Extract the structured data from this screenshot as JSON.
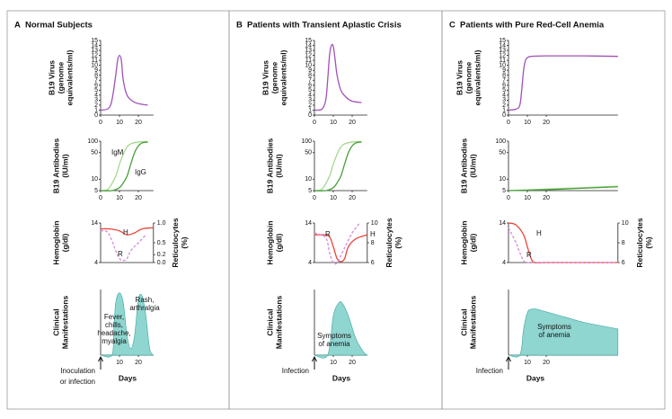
{
  "chart_data": [
    {
      "type": "line",
      "panel_label": "A",
      "title": "Normal Subjects",
      "ylabel": [
        "B19 Virus",
        "(genome",
        "equivalents/ml)"
      ],
      "xlim": [
        0,
        28
      ],
      "xticks": [
        0,
        10,
        20
      ],
      "ylim": [
        0,
        15
      ],
      "yticks": [
        0,
        1,
        2,
        3,
        4,
        5,
        6,
        7,
        8,
        9,
        10,
        11,
        12,
        13,
        14,
        15
      ],
      "series": [
        {
          "color": "#a052b8",
          "x": [
            0,
            4,
            6,
            8,
            9,
            10,
            11,
            12,
            14,
            17,
            20,
            25
          ],
          "values": [
            1,
            1.3,
            3,
            8,
            11,
            12,
            11,
            7,
            4,
            2.8,
            2.3,
            2
          ]
        }
      ]
    },
    {
      "type": "line",
      "ylabel": [
        "B19 Antibodies",
        "(IU/ml)"
      ],
      "yscale": "log",
      "xlim": [
        0,
        28
      ],
      "xticks": [
        0,
        10,
        20
      ],
      "ylim": [
        5,
        100
      ],
      "yticks": [
        5,
        10,
        50,
        100
      ],
      "series": [
        {
          "name": "IgM",
          "color": "#a6d88e",
          "x": [
            0,
            4,
            8,
            10,
            12,
            14,
            16,
            20,
            25
          ],
          "values": [
            5,
            5.5,
            12,
            25,
            45,
            70,
            85,
            95,
            98
          ]
        },
        {
          "name": "IgG",
          "color": "#48a03a",
          "x": [
            0,
            6,
            10,
            12,
            14,
            16,
            18,
            20,
            22,
            25
          ],
          "values": [
            5,
            5,
            6,
            8,
            12,
            25,
            50,
            75,
            90,
            95
          ]
        }
      ]
    },
    {
      "type": "line",
      "ylabel": [
        "Hemoglobin",
        "(g/dl)"
      ],
      "y2label": [
        "Reticulocytes",
        "(%)"
      ],
      "xlim": [
        0,
        28
      ],
      "ylim": [
        4,
        14
      ],
      "yticks": [
        4,
        14
      ],
      "y2lim": [
        0,
        1
      ],
      "y2ticks": [
        {
          "value": 1,
          "label": "1.0"
        },
        {
          "value": 0.5,
          "label": "0.5"
        },
        0.2,
        {
          "value": 0,
          "label": "0.0"
        }
      ],
      "series": [
        {
          "name": "H",
          "color": "#e8463a",
          "x": [
            0,
            5,
            10,
            14,
            18,
            22,
            28
          ],
          "values": [
            12.5,
            12.5,
            12,
            11,
            11.5,
            12.5,
            12.8
          ]
        },
        {
          "name": "R",
          "color": "#d48ad8",
          "dashed": true,
          "axis": "y2",
          "x": [
            0,
            4,
            8,
            10,
            12,
            14,
            16,
            20,
            24
          ],
          "values": [
            0.8,
            0.75,
            0.3,
            0.1,
            0.05,
            0.1,
            0.3,
            0.5,
            0.7
          ]
        }
      ]
    },
    {
      "type": "area",
      "ylabel": [
        "Clinical",
        "Manifestations"
      ],
      "xlabel": "Days",
      "event_label": [
        "Inoculation",
        "or infection"
      ],
      "xlim": [
        0,
        28
      ],
      "xticks": [
        10,
        20
      ],
      "ylim": [
        0,
        100
      ],
      "color": "#8fd5d0",
      "x": [
        0,
        6,
        7,
        8,
        10,
        12,
        14,
        16,
        18,
        20,
        22,
        24,
        26,
        28
      ],
      "values": [
        0,
        0,
        40,
        80,
        95,
        80,
        30,
        10,
        30,
        85,
        90,
        60,
        10,
        0
      ],
      "annotations": [
        [
          "Fever,",
          "chills,",
          "headache,",
          "myalgia"
        ],
        [
          "Rash,",
          "arthralgia"
        ]
      ]
    },
    {
      "type": "line",
      "panel_label": "B",
      "title": "Patients with Transient Aplastic Crisis",
      "ylabel": [
        "B19 Virus",
        "(genome",
        "equivalents/ml)"
      ],
      "xlim": [
        0,
        28
      ],
      "xticks": [
        0,
        10,
        20
      ],
      "ylim": [
        0,
        15
      ],
      "yticks": [
        0,
        1,
        2,
        3,
        4,
        5,
        6,
        7,
        8,
        9,
        10,
        11,
        12,
        13,
        14,
        15
      ],
      "series": [
        {
          "color": "#a052b8",
          "x": [
            0,
            4,
            6,
            7,
            8,
            9,
            10,
            11,
            12,
            14,
            17,
            20,
            25
          ],
          "values": [
            1,
            1.2,
            3,
            7,
            12,
            14,
            13.8,
            11,
            8,
            5,
            3.5,
            2.8,
            2.5
          ]
        }
      ]
    },
    {
      "type": "line",
      "ylabel": [
        "B19 Antibodies",
        "(IU/ml)"
      ],
      "yscale": "log",
      "xlim": [
        0,
        28
      ],
      "xticks": [
        0,
        10,
        20
      ],
      "ylim": [
        5,
        100
      ],
      "yticks": [
        5,
        10,
        50,
        100
      ],
      "series": [
        {
          "color": "#a6d88e",
          "x": [
            0,
            4,
            8,
            10,
            12,
            14,
            16,
            20,
            25
          ],
          "values": [
            5,
            5.5,
            12,
            25,
            45,
            70,
            85,
            95,
            98
          ]
        },
        {
          "color": "#48a03a",
          "x": [
            0,
            6,
            10,
            12,
            14,
            16,
            18,
            20,
            22,
            25
          ],
          "values": [
            5,
            5,
            6,
            8,
            12,
            25,
            50,
            75,
            90,
            95
          ]
        }
      ]
    },
    {
      "type": "line",
      "ylabel": [
        "Hemoglobin",
        "(g/dl)"
      ],
      "y2label": [
        "Reticulocytes",
        "(%)"
      ],
      "xlim": [
        0,
        28
      ],
      "ylim": [
        4,
        14
      ],
      "yticks": [
        4,
        14
      ],
      "y2lim": [
        6,
        10
      ],
      "y2ticks": [
        10,
        8,
        6
      ],
      "series": [
        {
          "name": "H",
          "color": "#e8463a",
          "x": [
            0,
            5,
            8,
            10,
            12,
            14,
            16,
            18,
            22,
            28
          ],
          "values": [
            11,
            11,
            10.5,
            8,
            5,
            4.2,
            5,
            8,
            10,
            11
          ]
        },
        {
          "name": "R",
          "color": "#d48ad8",
          "dashed": true,
          "axis": "y2",
          "x": [
            0,
            6,
            8,
            10,
            12,
            16,
            20,
            24
          ],
          "values": [
            9,
            8.5,
            7,
            6,
            6,
            7.5,
            9,
            10
          ]
        }
      ]
    },
    {
      "type": "area",
      "ylabel": [
        "Clinical",
        "Manifestations"
      ],
      "xlabel": "Days",
      "event_label": [
        "Infection"
      ],
      "xlim": [
        0,
        28
      ],
      "xticks": [
        10,
        20
      ],
      "ylim": [
        0,
        100
      ],
      "color": "#8fd5d0",
      "x": [
        0,
        7,
        10,
        13,
        15,
        18,
        22,
        26,
        28
      ],
      "values": [
        0,
        0,
        60,
        80,
        78,
        60,
        25,
        5,
        0
      ],
      "annotations": [
        [
          "Symptoms",
          "of anemia"
        ]
      ]
    },
    {
      "type": "line",
      "panel_label": "C",
      "title": "Patients with Pure Red-Cell Anemia",
      "ylabel": [
        "B19 Virus",
        "(genome",
        "equivalents/ml)"
      ],
      "xlim": [
        0,
        58
      ],
      "xticks": [
        0,
        10,
        20
      ],
      "ylim": [
        0,
        15
      ],
      "yticks": [
        0,
        1,
        2,
        3,
        4,
        5,
        6,
        7,
        8,
        9,
        10,
        11,
        12,
        13,
        14,
        15
      ],
      "series": [
        {
          "color": "#a052b8",
          "x": [
            0,
            4,
            6,
            7,
            8,
            9,
            10,
            12,
            20,
            40,
            58
          ],
          "values": [
            1,
            1.2,
            2,
            5,
            9,
            11,
            11.5,
            11.8,
            11.9,
            11.9,
            11.8
          ]
        }
      ]
    },
    {
      "type": "line",
      "ylabel": [
        "B19 Antibodies",
        "(IU/ml)"
      ],
      "yscale": "log",
      "xlim": [
        0,
        58
      ],
      "xticks": [
        0,
        10,
        20
      ],
      "ylim": [
        5,
        100
      ],
      "yticks": [
        5,
        10,
        50,
        100
      ],
      "series": [
        {
          "color": "#a6d88e",
          "x": [
            0,
            20,
            40,
            58
          ],
          "values": [
            5,
            5.5,
            6,
            6.5
          ]
        },
        {
          "color": "#48a03a",
          "x": [
            0,
            20,
            40,
            58
          ],
          "values": [
            5,
            5.3,
            5.8,
            6.3
          ]
        }
      ]
    },
    {
      "type": "line",
      "ylabel": [
        "Hemoglobin",
        "(g/dl)"
      ],
      "y2label": [
        "Reticulocytes",
        "(%)"
      ],
      "xlim": [
        0,
        58
      ],
      "ylim": [
        4,
        14
      ],
      "yticks": [
        4,
        14
      ],
      "y2lim": [
        6,
        10
      ],
      "y2ticks": [
        10,
        8,
        6
      ],
      "series": [
        {
          "name": "H",
          "color": "#e8463a",
          "x": [
            0,
            4,
            8,
            10,
            12,
            14,
            20,
            58
          ],
          "values": [
            14,
            13.5,
            11,
            8,
            5,
            4,
            4,
            4
          ]
        },
        {
          "name": "R",
          "color": "#d48ad8",
          "dashed": true,
          "axis": "y2",
          "x": [
            0,
            4,
            6,
            8,
            10,
            20,
            58
          ],
          "values": [
            9.5,
            8,
            7,
            6.2,
            6,
            6,
            6
          ]
        }
      ]
    },
    {
      "type": "area",
      "ylabel": [
        "Clinical",
        "Manifestations"
      ],
      "xlabel": "Days",
      "event_label": [
        "Infection"
      ],
      "xlim": [
        0,
        58
      ],
      "xticks": [
        10,
        20
      ],
      "ylim": [
        0,
        100
      ],
      "color": "#8fd5d0",
      "x": [
        0,
        6,
        8,
        10,
        12,
        15,
        20,
        30,
        40,
        58
      ],
      "values": [
        0,
        0,
        40,
        65,
        70,
        70,
        66,
        58,
        50,
        40
      ],
      "annotations": [
        [
          "Symptoms",
          "of anemia"
        ]
      ]
    }
  ]
}
